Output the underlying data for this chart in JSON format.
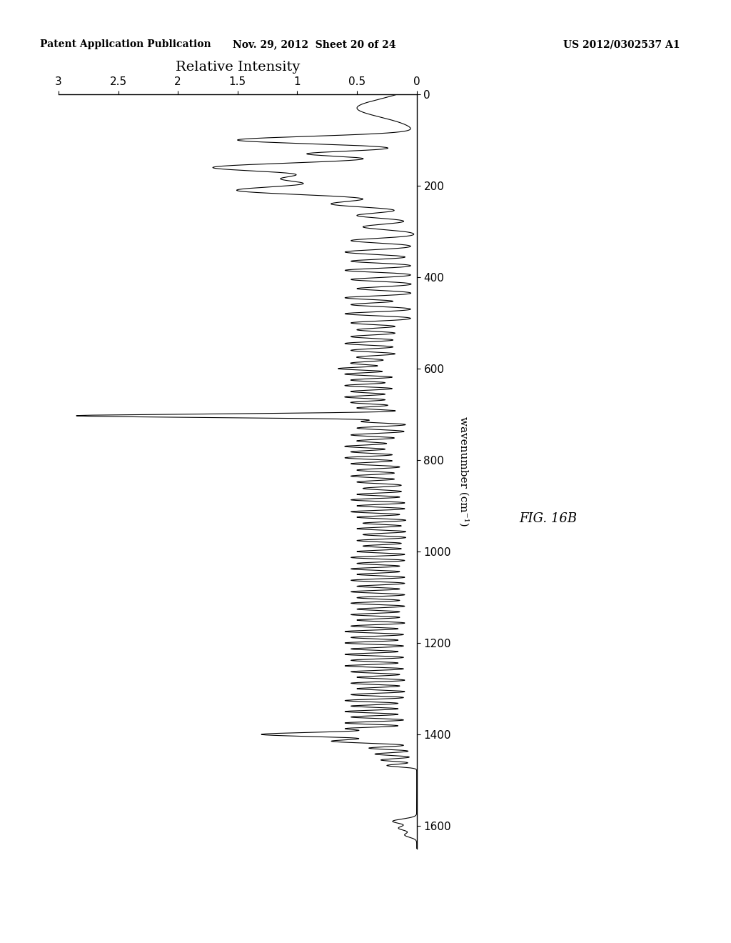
{
  "title": "",
  "xlabel_rotated": "Relative Intensity",
  "ylabel_rotated": "wavenumber (cm⁻¹)",
  "fig_label": "FIG. 16B",
  "header_left": "Patent Application Publication",
  "header_center": "Nov. 29, 2012  Sheet 20 of 24",
  "header_right": "US 2012/0302537 A1",
  "x_ticks": [
    0,
    0.5,
    1,
    1.5,
    2,
    2.5,
    3
  ],
  "y_ticks": [
    0,
    200,
    400,
    600,
    800,
    1000,
    1200,
    1400,
    1600
  ],
  "xlim": [
    0,
    3.0
  ],
  "ylim": [
    0,
    1650
  ],
  "background": "#ffffff",
  "line_color": "#000000",
  "line_width": 0.8
}
